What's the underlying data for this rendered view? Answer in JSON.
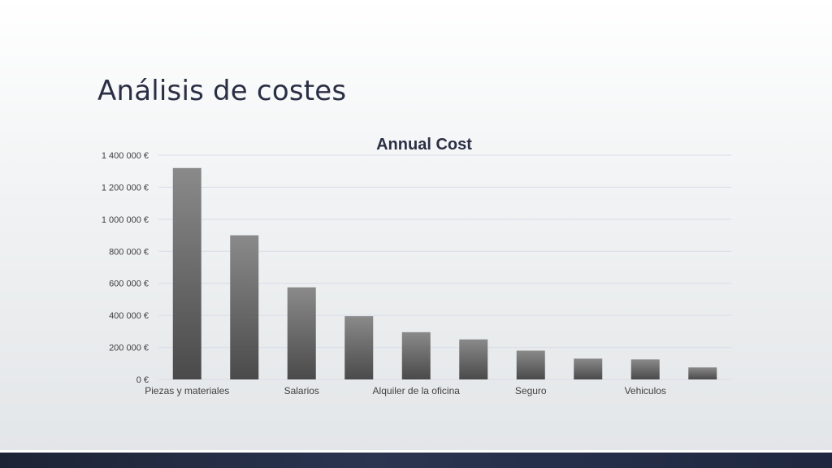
{
  "slide": {
    "title": "Análisis de costes"
  },
  "colors": {
    "bar_top": "#8a8a8a",
    "bar_bottom": "#4a4a4a",
    "grid": "#d9dbe8",
    "axis_text": "#404040",
    "title_text": "#2a2f45",
    "footer": "#1f2740"
  },
  "chart_data": {
    "type": "bar",
    "title": "Annual Cost",
    "xlabel": "",
    "ylabel": "",
    "ylim": [
      0,
      1400000
    ],
    "yticks": [
      0,
      200000,
      400000,
      600000,
      800000,
      1000000,
      1200000,
      1400000
    ],
    "ytick_labels": [
      "0 €",
      "200 000 €",
      "400 000 €",
      "600 000 €",
      "800 000 €",
      "1 000 000 €",
      "1 200 000 €",
      "1 400 000 €"
    ],
    "grid": true,
    "legend": "none",
    "categories": [
      "Piezas y materiales",
      "",
      "Salarios",
      "",
      "Alquiler de la oficina",
      "",
      "Seguro",
      "",
      "Vehiculos",
      ""
    ],
    "x_labels_visible": [
      "Piezas y materiales",
      "",
      "Salarios",
      "",
      "Alquiler de la oficina",
      "",
      "Seguro",
      "",
      "Vehiculos",
      ""
    ],
    "values": [
      1320000,
      900000,
      575000,
      395000,
      295000,
      250000,
      180000,
      130000,
      125000,
      75000
    ]
  }
}
